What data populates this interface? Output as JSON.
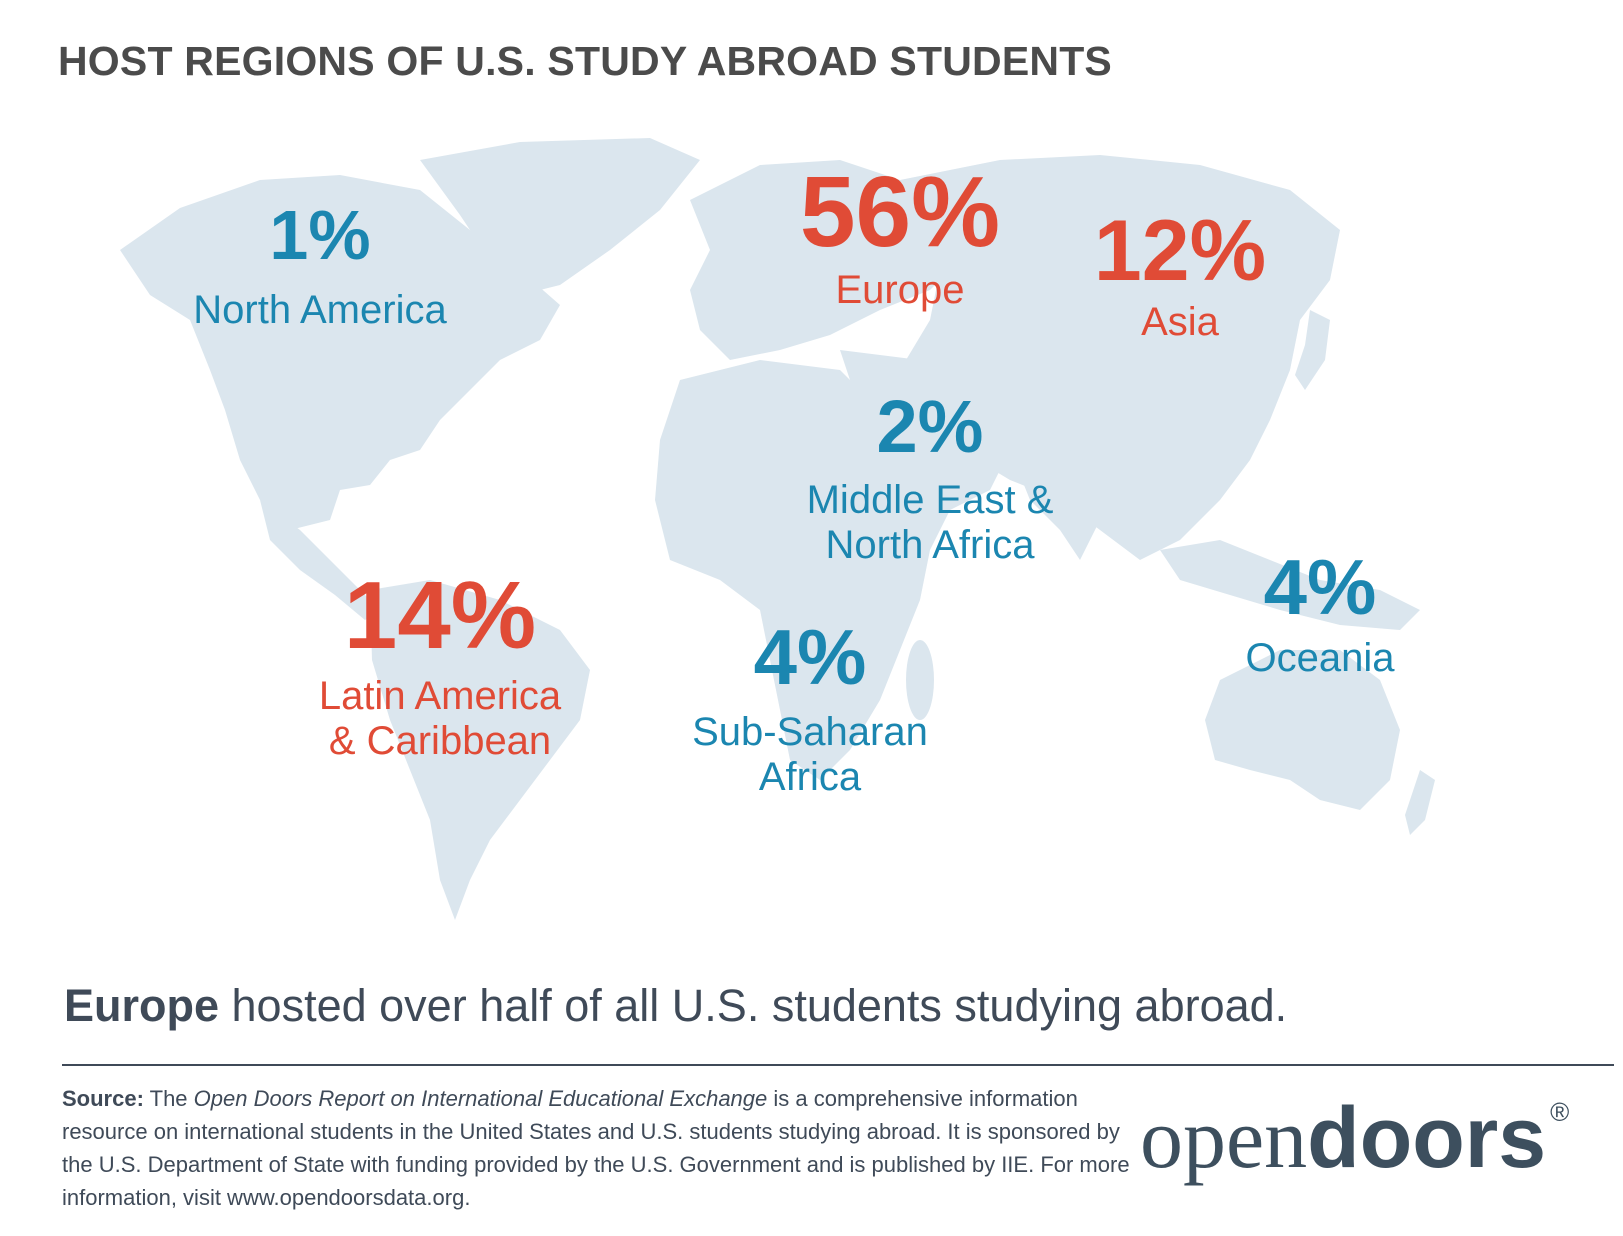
{
  "title": "HOST REGIONS OF U.S. STUDY ABROAD STUDENTS",
  "regions": [
    {
      "percent": "1%",
      "label_lines": [
        "North America"
      ],
      "color": "#1b86b0"
    },
    {
      "percent": "56%",
      "label_lines": [
        "Europe"
      ],
      "color": "#e04b36"
    },
    {
      "percent": "12%",
      "label_lines": [
        "Asia"
      ],
      "color": "#e04b36"
    },
    {
      "percent": "2%",
      "label_lines": [
        "Middle East &",
        "North Africa"
      ],
      "color": "#1b86b0"
    },
    {
      "percent": "14%",
      "label_lines": [
        "Latin America",
        "& Caribbean"
      ],
      "color": "#e04b36"
    },
    {
      "percent": "4%",
      "label_lines": [
        "Sub-Saharan",
        "Africa"
      ],
      "color": "#1b86b0"
    },
    {
      "percent": "4%",
      "label_lines": [
        "Oceania"
      ],
      "color": "#1b86b0"
    }
  ],
  "headline": {
    "bold": "Europe",
    "rest": " hosted over half of all U.S. students studying abroad."
  },
  "source": {
    "label": "Source:",
    "text_before": " The ",
    "report_name": "Open Doors Report on International Educational Exchange",
    "text_after": " is a comprehensive information resource on international students in the United States and U.S. students studying abroad. It is sponsored by the U.S. Department of State with funding provided by the U.S. Government and is published by IIE. For more information, visit www.opendoorsdata.org."
  },
  "logo": {
    "light": "open",
    "heavy": "doors",
    "mark": "®"
  },
  "map_fill": "#dbe6ee"
}
